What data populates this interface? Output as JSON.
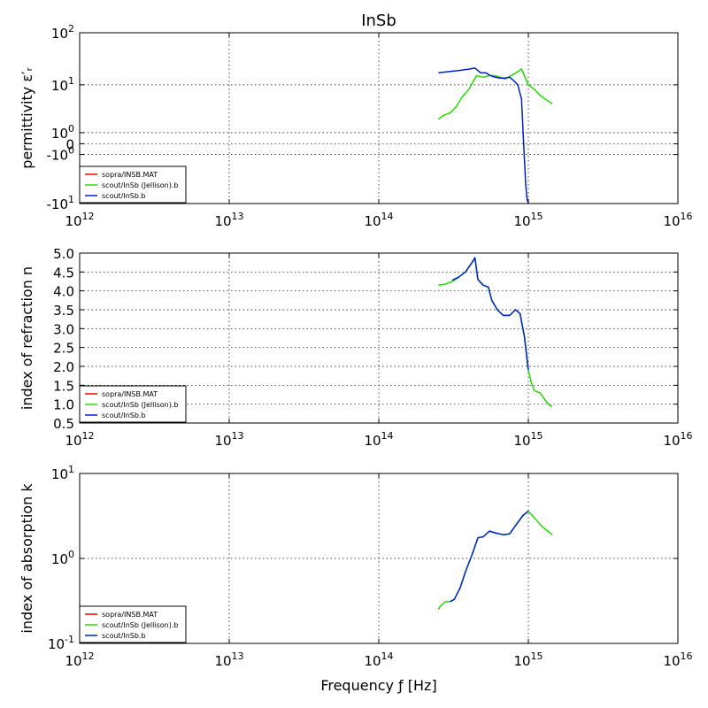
{
  "chart_data": [
    {
      "type": "line",
      "title": "InSb",
      "xlabel": "",
      "ylabel": "permittivity ε′ᵣ",
      "xscale": "log",
      "yscale": "symlog",
      "xlim": [
        1000000000000.0,
        1e+16
      ],
      "ylim": [
        -10,
        100
      ],
      "grid": true,
      "legend_position": "bottom-left",
      "x_ticks": [
        {
          "base": "10",
          "exp": "12",
          "value": 1000000000000.0
        },
        {
          "base": "10",
          "exp": "13",
          "value": 10000000000000.0
        },
        {
          "base": "10",
          "exp": "14",
          "value": 100000000000000.0
        },
        {
          "base": "10",
          "exp": "15",
          "value": 1000000000000000.0
        },
        {
          "base": "10",
          "exp": "16",
          "value": 1e+16
        }
      ],
      "y_ticks": [
        {
          "base": "10",
          "exp": "2",
          "value": 100
        },
        {
          "base": "10",
          "exp": "1",
          "value": 10
        },
        {
          "base": "10",
          "exp": "0",
          "value": 1
        },
        {
          "base": "0",
          "exp": "",
          "value": 0
        },
        {
          "base": "-10",
          "exp": "0",
          "value": -1
        },
        {
          "base": "-10",
          "exp": "1",
          "value": -10
        }
      ],
      "series": [
        {
          "name": "sopra/INSB.MAT",
          "color": "#ff0000",
          "x": [],
          "y": []
        },
        {
          "name": "scout/InSb (Jellison).b",
          "color": "#22dd00",
          "x": [
            250000000000000.0,
            270000000000000.0,
            300000000000000.0,
            330000000000000.0,
            360000000000000.0,
            400000000000000.0,
            450000000000000.0,
            500000000000000.0,
            550000000000000.0,
            600000000000000.0,
            700000000000000.0,
            800000000000000.0,
            900000000000000.0,
            1000000000000000.0,
            1100000000000000.0,
            1200000000000000.0,
            1300000000000000.0,
            1450000000000000.0
          ],
          "y": [
            1.9,
            2.3,
            2.6,
            3.5,
            5.5,
            8,
            15,
            14,
            15,
            15,
            13,
            16,
            20,
            10,
            8,
            6,
            5,
            4
          ]
        },
        {
          "name": "scout/InSb.b",
          "color": "#0022cc",
          "x": [
            250000000000000.0,
            300000000000000.0,
            350000000000000.0,
            400000000000000.0,
            440000000000000.0,
            480000000000000.0,
            520000000000000.0,
            560000000000000.0,
            600000000000000.0,
            650000000000000.0,
            700000000000000.0,
            750000000000000.0,
            800000000000000.0,
            850000000000000.0,
            900000000000000.0,
            930000000000000.0,
            960000000000000.0,
            980000000000000.0,
            1000000000000000.0
          ],
          "y": [
            17,
            18,
            19,
            20,
            21,
            17,
            17,
            15,
            14,
            13.5,
            13.5,
            14,
            12,
            10,
            5,
            0,
            -4,
            -8,
            -10
          ]
        }
      ]
    },
    {
      "type": "line",
      "title": "",
      "xlabel": "",
      "ylabel": "index of refraction n",
      "xscale": "log",
      "yscale": "linear",
      "xlim": [
        1000000000000.0,
        1e+16
      ],
      "ylim": [
        0.5,
        5.0
      ],
      "grid": true,
      "legend_position": "bottom-left",
      "x_ticks": [
        {
          "base": "10",
          "exp": "12",
          "value": 1000000000000.0
        },
        {
          "base": "10",
          "exp": "13",
          "value": 10000000000000.0
        },
        {
          "base": "10",
          "exp": "14",
          "value": 100000000000000.0
        },
        {
          "base": "10",
          "exp": "15",
          "value": 1000000000000000.0
        },
        {
          "base": "10",
          "exp": "16",
          "value": 1e+16
        }
      ],
      "y_ticks": [
        {
          "base": "5.0",
          "exp": "",
          "value": 5.0
        },
        {
          "base": "4.5",
          "exp": "",
          "value": 4.5
        },
        {
          "base": "4.0",
          "exp": "",
          "value": 4.0
        },
        {
          "base": "3.5",
          "exp": "",
          "value": 3.5
        },
        {
          "base": "3.0",
          "exp": "",
          "value": 3.0
        },
        {
          "base": "2.5",
          "exp": "",
          "value": 2.5
        },
        {
          "base": "2.0",
          "exp": "",
          "value": 2.0
        },
        {
          "base": "1.5",
          "exp": "",
          "value": 1.5
        },
        {
          "base": "1.0",
          "exp": "",
          "value": 1.0
        },
        {
          "base": "0.5",
          "exp": "",
          "value": 0.5
        }
      ],
      "series": [
        {
          "name": "sopra/INSB.MAT",
          "color": "#ff0000",
          "x": [],
          "y": []
        },
        {
          "name": "scout/InSb (Jellison).b",
          "color": "#22dd00",
          "x": [
            250000000000000.0,
            280000000000000.0,
            310000000000000.0,
            340000000000000.0,
            380000000000000.0,
            420000000000000.0,
            440000000000000.0,
            460000000000000.0,
            500000000000000.0,
            540000000000000.0,
            570000000000000.0,
            620000000000000.0,
            680000000000000.0,
            750000000000000.0,
            820000000000000.0,
            880000000000000.0,
            940000000000000.0,
            1000000000000000.0,
            1050000000000000.0,
            1100000000000000.0,
            1200000000000000.0,
            1300000000000000.0,
            1400000000000000.0,
            1450000000000000.0
          ],
          "y": [
            4.15,
            4.18,
            4.25,
            4.35,
            4.5,
            4.75,
            4.85,
            4.3,
            4.15,
            4.1,
            3.75,
            3.5,
            3.35,
            3.35,
            3.5,
            3.4,
            2.8,
            1.9,
            1.55,
            1.35,
            1.3,
            1.1,
            0.95,
            0.95
          ]
        },
        {
          "name": "scout/InSb.b",
          "color": "#0022cc",
          "x": [
            310000000000000.0,
            340000000000000.0,
            380000000000000.0,
            420000000000000.0,
            440000000000000.0,
            460000000000000.0,
            500000000000000.0,
            540000000000000.0,
            570000000000000.0,
            620000000000000.0,
            680000000000000.0,
            750000000000000.0,
            820000000000000.0,
            880000000000000.0,
            940000000000000.0,
            1000000000000000.0
          ],
          "y": [
            4.28,
            4.36,
            4.5,
            4.75,
            4.88,
            4.3,
            4.15,
            4.1,
            3.75,
            3.5,
            3.35,
            3.35,
            3.5,
            3.4,
            2.8,
            1.9
          ]
        }
      ]
    },
    {
      "type": "line",
      "title": "",
      "xlabel": "Frequency ƒ [Hz]",
      "ylabel": "index of absorption k",
      "xscale": "log",
      "yscale": "log",
      "xlim": [
        1000000000000.0,
        1e+16
      ],
      "ylim": [
        0.1,
        10
      ],
      "grid": true,
      "legend_position": "bottom-left",
      "x_ticks": [
        {
          "base": "10",
          "exp": "12",
          "value": 1000000000000.0
        },
        {
          "base": "10",
          "exp": "13",
          "value": 10000000000000.0
        },
        {
          "base": "10",
          "exp": "14",
          "value": 100000000000000.0
        },
        {
          "base": "10",
          "exp": "15",
          "value": 1000000000000000.0
        },
        {
          "base": "10",
          "exp": "16",
          "value": 1e+16
        }
      ],
      "y_ticks": [
        {
          "base": "10",
          "exp": "1",
          "value": 10
        },
        {
          "base": "10",
          "exp": "0",
          "value": 1
        },
        {
          "base": "10",
          "exp": "-1",
          "value": 0.1
        }
      ],
      "series": [
        {
          "name": "sopra/INSB.MAT",
          "color": "#ff0000",
          "x": [],
          "y": []
        },
        {
          "name": "scout/InSb (Jellison).b",
          "color": "#22dd00",
          "x": [
            250000000000000.0,
            260000000000000.0,
            280000000000000.0,
            300000000000000.0,
            320000000000000.0,
            350000000000000.0,
            380000000000000.0,
            420000000000000.0,
            460000000000000.0,
            500000000000000.0,
            550000000000000.0,
            600000000000000.0,
            680000000000000.0,
            750000000000000.0,
            830000000000000.0,
            920000000000000.0,
            1000000000000000.0,
            1100000000000000.0,
            1200000000000000.0,
            1300000000000000.0,
            1450000000000000.0
          ],
          "y": [
            0.25,
            0.28,
            0.31,
            0.31,
            0.33,
            0.45,
            0.7,
            1.1,
            1.75,
            1.8,
            2.1,
            2.0,
            1.9,
            1.95,
            2.5,
            3.2,
            3.6,
            3.0,
            2.5,
            2.2,
            1.9
          ]
        },
        {
          "name": "scout/InSb.b",
          "color": "#0022cc",
          "x": [
            300000000000000.0,
            320000000000000.0,
            350000000000000.0,
            380000000000000.0,
            420000000000000.0,
            460000000000000.0,
            500000000000000.0,
            550000000000000.0,
            600000000000000.0,
            680000000000000.0,
            750000000000000.0,
            830000000000000.0,
            920000000000000.0,
            1000000000000000.0
          ],
          "y": [
            0.31,
            0.33,
            0.45,
            0.7,
            1.1,
            1.75,
            1.8,
            2.1,
            2.0,
            1.9,
            1.95,
            2.5,
            3.2,
            3.6
          ]
        }
      ]
    }
  ]
}
